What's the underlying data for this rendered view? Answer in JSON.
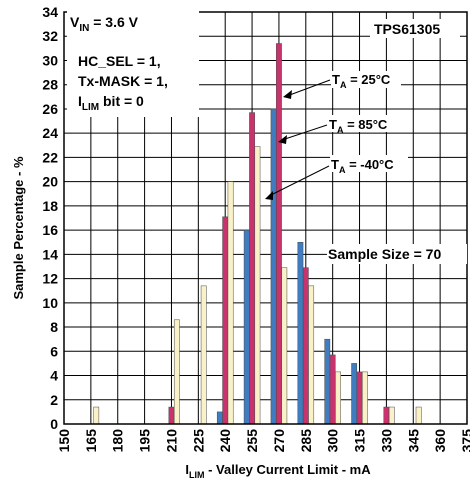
{
  "colors": {
    "blue": "#3F7CC0",
    "magenta": "#C8336E",
    "cream": "#FAF1C8",
    "grid": "#000000",
    "background": "#ffffff"
  },
  "chart_data": {
    "type": "bar",
    "title": "",
    "xlabel": {
      "main": "I",
      "sub": "LIM",
      "rest": " - Valley Current Limit - mA"
    },
    "ylabel": "Sample Percentage - %",
    "xlim": [
      150,
      375
    ],
    "ylim": [
      0,
      34
    ],
    "x_tick_step": 15,
    "y_tick_step": 2,
    "grid": "on",
    "x_ticks": [
      "150",
      "165",
      "180",
      "195",
      "210",
      "225",
      "240",
      "255",
      "270",
      "285",
      "300",
      "315",
      "330",
      "345",
      "360",
      "375"
    ],
    "y_ticks": [
      "0",
      "2",
      "4",
      "6",
      "8",
      "10",
      "12",
      "14",
      "16",
      "18",
      "20",
      "22",
      "24",
      "26",
      "28",
      "30",
      "32",
      "34"
    ],
    "bin_offsets": [
      -3,
      0,
      3
    ],
    "series": [
      {
        "name": "TA = 25°C",
        "color_key": "blue",
        "points": [
          [
            240,
            1
          ],
          [
            255,
            16
          ],
          [
            270,
            26
          ],
          [
            285,
            15
          ],
          [
            300,
            7
          ],
          [
            315,
            5
          ]
        ]
      },
      {
        "name": "TA = 85°C",
        "color_key": "magenta",
        "points": [
          [
            210,
            1.4
          ],
          [
            240,
            17.1
          ],
          [
            255,
            25.7
          ],
          [
            270,
            31.4
          ],
          [
            285,
            12.9
          ],
          [
            300,
            5.7
          ],
          [
            315,
            4.3
          ],
          [
            330,
            1.4
          ]
        ]
      },
      {
        "name": "TA = -40°C",
        "color_key": "cream",
        "points": [
          [
            165,
            1.4
          ],
          [
            210,
            8.6
          ],
          [
            225,
            11.4
          ],
          [
            240,
            20
          ],
          [
            255,
            22.9
          ],
          [
            270,
            12.9
          ],
          [
            285,
            11.4
          ],
          [
            300,
            4.3
          ],
          [
            315,
            4.3
          ],
          [
            330,
            1.4
          ],
          [
            345,
            1.4
          ]
        ]
      }
    ],
    "annotations": {
      "vin": {
        "main": "V",
        "sub": "IN",
        "rest": " = 3.6 V"
      },
      "device": "TPS61305",
      "hc_sel": "HC_SEL = 1,",
      "tx_mask": "Tx-MASK = 1,",
      "ilim": {
        "main": "I",
        "sub": "LIM",
        "rest": " bit = 0"
      },
      "sample_size": "Sample Size = 70",
      "ta_25": {
        "main": "T",
        "sub": "A",
        "rest": " = 25°C"
      },
      "ta_85": {
        "main": "T",
        "sub": "A",
        "rest": " = 85°C"
      },
      "ta_m40": {
        "main": "T",
        "sub": "A",
        "rest": " = -40°C"
      }
    }
  }
}
